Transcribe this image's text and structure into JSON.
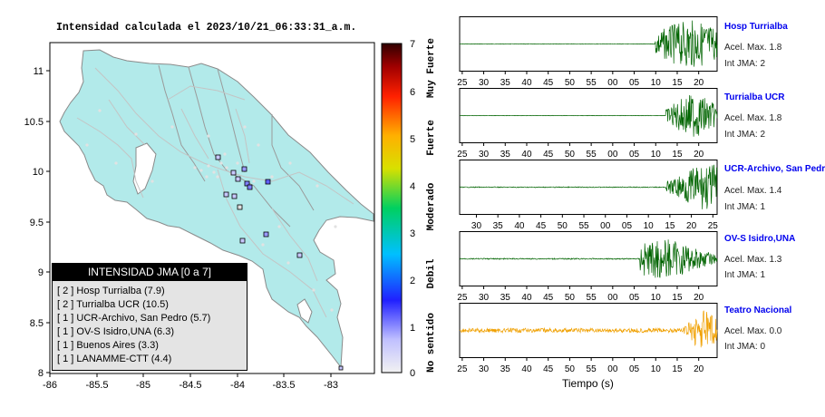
{
  "map": {
    "title": "Intensidad calculada el 2023/10/21_06:33:31_a.m.",
    "x_ticks": [
      "-86",
      "-85.5",
      "-85",
      "-84.5",
      "-84",
      "-83.5",
      "-83"
    ],
    "y_ticks": [
      "11",
      "10.5",
      "10",
      "9.5",
      "9",
      "8.5",
      "8"
    ],
    "colorbar": {
      "ticks": [
        "7",
        "6",
        "5",
        "4",
        "3",
        "2",
        "1",
        "0"
      ],
      "labels": [
        "Muy Fuerte",
        "Fuerte",
        "Moderado",
        "Debil",
        "No sentido"
      ]
    },
    "colors": {
      "land": "#b2eaea",
      "border": "#9a9a9a",
      "road": "#c8c8c8",
      "station_dot": "#e8e8e8"
    }
  },
  "legend": {
    "title": "INTENSIDAD JMA [0 a 7]",
    "items": [
      "[ 2 ]  Hosp Turrialba (7.9)",
      "[ 2 ]  Turrialba UCR (10.5)",
      "[ 1 ]  UCR-Archivo, San Pedro (5.7)",
      "[ 1 ]  OV-S Isidro,UNA (6.3)",
      "[ 1 ]  Buenos Aires (3.3)",
      "[ 1 ]  LANAMME-CTT (4.4)"
    ]
  },
  "stations": [
    {
      "name": "Hosp Turrialba",
      "acc": "Acel. Max. 1.8",
      "int": "Int JMA: 2",
      "ticks": [
        "25",
        "30",
        "35",
        "40",
        "45",
        "50",
        "55",
        "00",
        "05",
        "10",
        "15",
        "20"
      ],
      "color": "#006400"
    },
    {
      "name": "Turrialba UCR",
      "acc": "Acel. Max. 1.8",
      "int": "Int JMA: 2",
      "ticks": [
        "25",
        "30",
        "35",
        "40",
        "45",
        "50",
        "55",
        "00",
        "05",
        "10",
        "15",
        "20"
      ],
      "color": "#006400"
    },
    {
      "name": "UCR-Archivo, San Pedro",
      "acc": "Acel. Max. 1.4",
      "int": "Int JMA: 1",
      "ticks": [
        "30",
        "35",
        "40",
        "45",
        "50",
        "55",
        "00",
        "05",
        "10",
        "15",
        "20",
        "25"
      ],
      "color": "#006400"
    },
    {
      "name": "OV-S Isidro,UNA",
      "acc": "Acel. Max. 1.3",
      "int": "Int JMA: 1",
      "ticks": [
        "25",
        "30",
        "35",
        "40",
        "45",
        "50",
        "55",
        "00",
        "05",
        "10",
        "15",
        "20"
      ],
      "color": "#006400"
    },
    {
      "name": "Teatro Nacional",
      "acc": "Acel. Max. 0.0",
      "int": "Int JMA: 0",
      "ticks": [
        "25",
        "30",
        "35",
        "40",
        "45",
        "50",
        "55",
        "00",
        "05",
        "10",
        "15",
        "20"
      ],
      "color": "#f0a000"
    }
  ],
  "time_axis_label": "Tiempo (s)"
}
